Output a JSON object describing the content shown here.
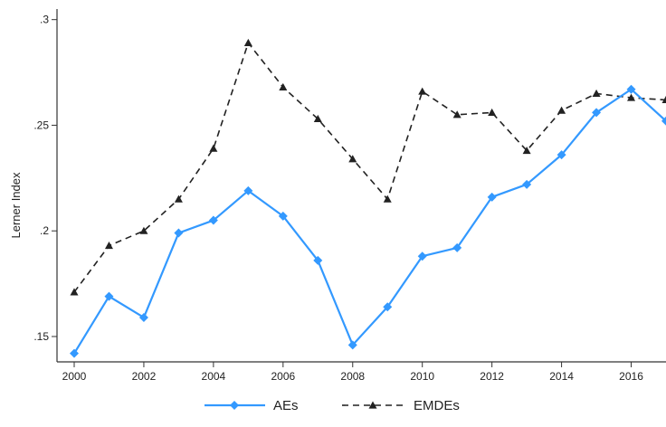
{
  "chart_data": {
    "type": "line",
    "title": "",
    "xlabel": "",
    "ylabel": "Lerner Index",
    "x": [
      2000,
      2001,
      2002,
      2003,
      2004,
      2005,
      2006,
      2007,
      2008,
      2009,
      2010,
      2011,
      2012,
      2013,
      2014,
      2015,
      2016,
      2017
    ],
    "xlim": [
      2000,
      2017
    ],
    "ylim": [
      0.138,
      0.305
    ],
    "x_ticks": [
      2000,
      2002,
      2004,
      2006,
      2008,
      2010,
      2012,
      2014,
      2016
    ],
    "x_tick_labels": [
      "2000",
      "2002",
      "2004",
      "2006",
      "2008",
      "2010",
      "2012",
      "2014",
      "2016"
    ],
    "y_ticks": [
      0.15,
      0.2,
      0.25,
      0.3
    ],
    "y_tick_labels": [
      ".15",
      ".2",
      ".25",
      ".3"
    ],
    "grid": false,
    "legend_position": "bottom",
    "series": [
      {
        "name": "AEs",
        "color": "#3399ff",
        "line_style": "solid",
        "marker": "diamond",
        "values": [
          0.142,
          0.169,
          0.159,
          0.199,
          0.205,
          0.219,
          0.207,
          0.186,
          0.146,
          0.164,
          0.188,
          0.192,
          0.216,
          0.222,
          0.236,
          0.256,
          0.267,
          0.252
        ]
      },
      {
        "name": "EMDEs",
        "color": "#222222",
        "line_style": "dashed",
        "marker": "triangle",
        "values": [
          0.171,
          0.193,
          0.2,
          0.215,
          0.239,
          0.289,
          0.268,
          0.253,
          0.234,
          0.215,
          0.266,
          0.255,
          0.256,
          0.238,
          0.257,
          0.265,
          0.263,
          0.262
        ]
      }
    ]
  }
}
